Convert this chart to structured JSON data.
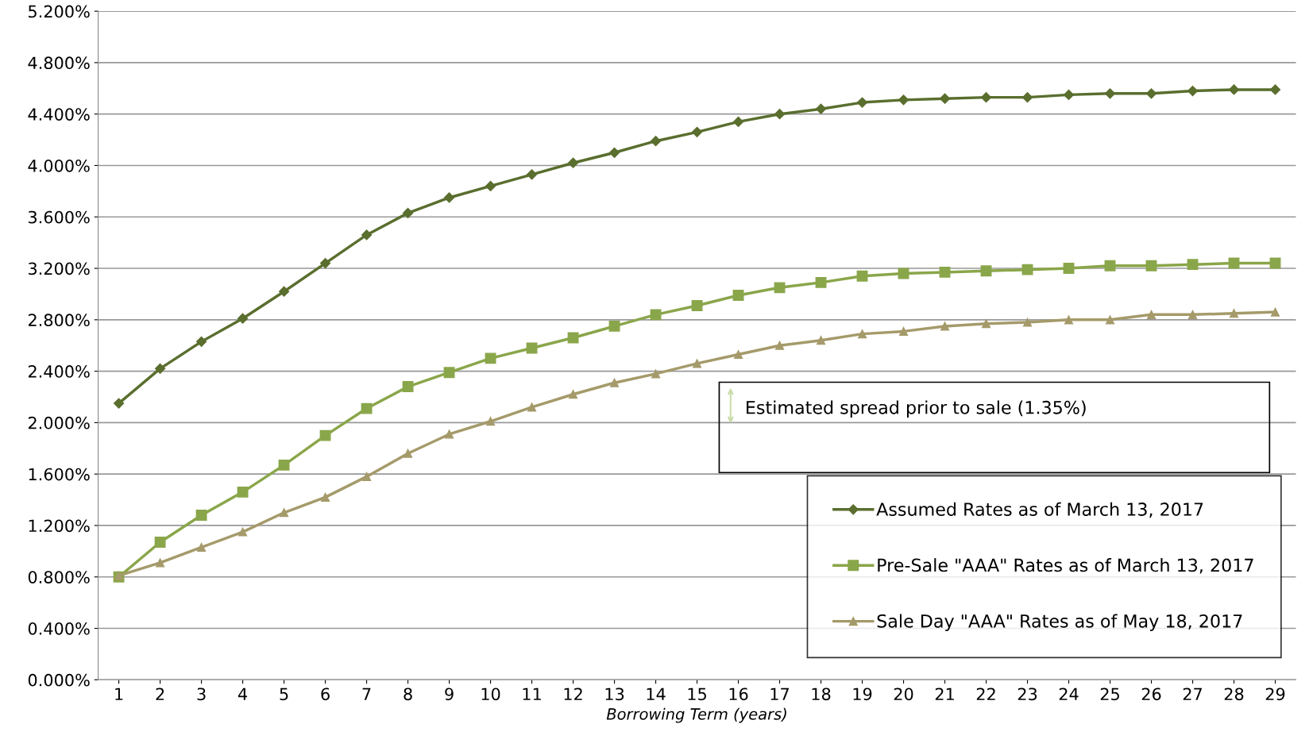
{
  "chart_data": {
    "type": "line",
    "xlabel": "Borrowing Term (years)",
    "categories": [
      "1",
      "2",
      "3",
      "4",
      "5",
      "6",
      "7",
      "8",
      "9",
      "10",
      "11",
      "12",
      "13",
      "14",
      "15",
      "16",
      "17",
      "18",
      "19",
      "20",
      "21",
      "22",
      "23",
      "24",
      "25",
      "26",
      "27",
      "28",
      "29"
    ],
    "series": [
      {
        "name": "Assumed Rates as of March 13, 2017",
        "color": "#5a6e2e",
        "marker": "diamond",
        "values": [
          2.15,
          2.42,
          2.63,
          2.81,
          3.02,
          3.24,
          3.46,
          3.63,
          3.75,
          3.84,
          3.93,
          4.02,
          4.1,
          4.19,
          4.26,
          4.34,
          4.4,
          4.44,
          4.49,
          4.51,
          4.52,
          4.53,
          4.53,
          4.55,
          4.56,
          4.56,
          4.58,
          4.59,
          4.59
        ]
      },
      {
        "name": "Pre-Sale \"AAA\" Rates as of March 13, 2017",
        "color": "#8aa64a",
        "marker": "square",
        "values": [
          0.8,
          1.07,
          1.28,
          1.46,
          1.67,
          1.9,
          2.11,
          2.28,
          2.39,
          2.5,
          2.58,
          2.66,
          2.75,
          2.84,
          2.91,
          2.99,
          3.05,
          3.09,
          3.14,
          3.16,
          3.17,
          3.18,
          3.19,
          3.2,
          3.22,
          3.22,
          3.23,
          3.24,
          3.24
        ]
      },
      {
        "name": "Sale Day \"AAA\" Rates as of May 18, 2017",
        "color": "#a59a6a",
        "marker": "triangle",
        "values": [
          0.81,
          0.91,
          1.03,
          1.15,
          1.3,
          1.42,
          1.58,
          1.76,
          1.91,
          2.01,
          2.12,
          2.22,
          2.31,
          2.38,
          2.46,
          2.53,
          2.6,
          2.64,
          2.69,
          2.71,
          2.75,
          2.77,
          2.78,
          2.8,
          2.8,
          2.84,
          2.84,
          2.85,
          2.86
        ]
      }
    ],
    "ylim": [
      0,
      5.2
    ],
    "yticks": [
      {
        "value": 0,
        "label": "0.000%"
      },
      {
        "value": 0.4,
        "label": "0.400%"
      },
      {
        "value": 0.8,
        "label": "0.800%"
      },
      {
        "value": 1.2,
        "label": "1.200%"
      },
      {
        "value": 1.6,
        "label": "1.600%"
      },
      {
        "value": 2.0,
        "label": "2.000%"
      },
      {
        "value": 2.4,
        "label": "2.400%"
      },
      {
        "value": 2.8,
        "label": "2.800%"
      },
      {
        "value": 3.2,
        "label": "3.200%"
      },
      {
        "value": 3.6,
        "label": "3.600%"
      },
      {
        "value": 4.0,
        "label": "4.000%"
      },
      {
        "value": 4.4,
        "label": "4.400%"
      },
      {
        "value": 4.8,
        "label": "4.800%"
      },
      {
        "value": 5.2,
        "label": "5.200%"
      }
    ],
    "grid": "y",
    "legend": "bottom right",
    "line_style": "solid",
    "annotations": [
      "Estimated spread prior to sale (1.35%)"
    ]
  }
}
